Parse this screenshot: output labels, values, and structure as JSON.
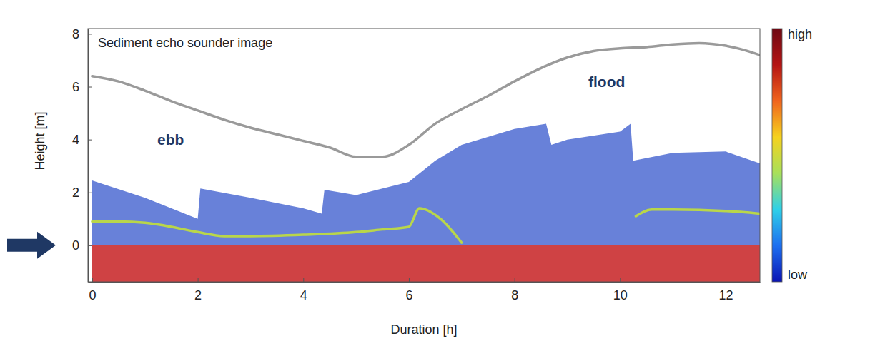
{
  "chart_data": {
    "type": "line",
    "title": "Sediment echo sounder image",
    "annotations": [
      "ebb",
      "flood"
    ],
    "xlabel": "Duration [h]",
    "ylabel": "Height [m]",
    "xlim": [
      -0.08,
      12.65
    ],
    "xticks": [
      0,
      2,
      4,
      6,
      8,
      10,
      12
    ],
    "ylim": [
      -1.38,
      8.2
    ],
    "yticks": [
      0,
      2,
      4,
      6,
      8
    ],
    "grid": false,
    "colorbar_labels": [
      "high",
      "low"
    ],
    "series": [
      {
        "type": "area",
        "color": "#4262d0",
        "x": [
          0,
          1,
          2,
          2.05,
          3,
          4,
          4.35,
          4.4,
          5,
          6,
          6.5,
          7,
          8,
          8.6,
          8.7,
          9,
          10,
          10.2,
          10.25,
          11,
          12,
          12.65
        ],
        "values": [
          2.45,
          1.8,
          1.0,
          2.15,
          1.8,
          1.4,
          1.2,
          2.1,
          1.9,
          2.4,
          3.2,
          3.8,
          4.4,
          4.6,
          3.8,
          4.0,
          4.3,
          4.6,
          3.2,
          3.5,
          3.55,
          3.1
        ]
      },
      {
        "type": "area",
        "color": "#e8321e",
        "x": [
          0,
          12.65
        ],
        "values": [
          0,
          0
        ]
      },
      {
        "type": "line",
        "color": "#b9d64a",
        "x": [
          0,
          0.5,
          1,
          1.5,
          2,
          2.5,
          3,
          4,
          5,
          5.5,
          6,
          6.2,
          6.6,
          7,
          8,
          10.3,
          10.6,
          11,
          12,
          12.65
        ],
        "values": [
          0.9,
          0.9,
          0.85,
          0.7,
          0.5,
          0.35,
          0.35,
          0.4,
          0.5,
          0.6,
          0.7,
          1.4,
          1.0,
          0.1,
          null,
          1.1,
          1.35,
          1.35,
          1.3,
          1.2
        ]
      },
      {
        "type": "line",
        "color": "#9a9a9a",
        "x": [
          0,
          0.5,
          1,
          1.5,
          2,
          2.5,
          3,
          3.5,
          4,
          4.5,
          5,
          5.5,
          6,
          6.5,
          7,
          7.5,
          8,
          8.5,
          9,
          9.5,
          10,
          10.5,
          11,
          11.5,
          12,
          12.5,
          12.65
        ],
        "values": [
          6.4,
          6.2,
          5.85,
          5.45,
          5.1,
          4.75,
          4.45,
          4.2,
          3.95,
          3.7,
          3.35,
          3.35,
          3.8,
          4.6,
          5.15,
          5.65,
          6.2,
          6.7,
          7.1,
          7.35,
          7.45,
          7.5,
          7.6,
          7.65,
          7.55,
          7.3,
          7.2
        ]
      }
    ]
  }
}
